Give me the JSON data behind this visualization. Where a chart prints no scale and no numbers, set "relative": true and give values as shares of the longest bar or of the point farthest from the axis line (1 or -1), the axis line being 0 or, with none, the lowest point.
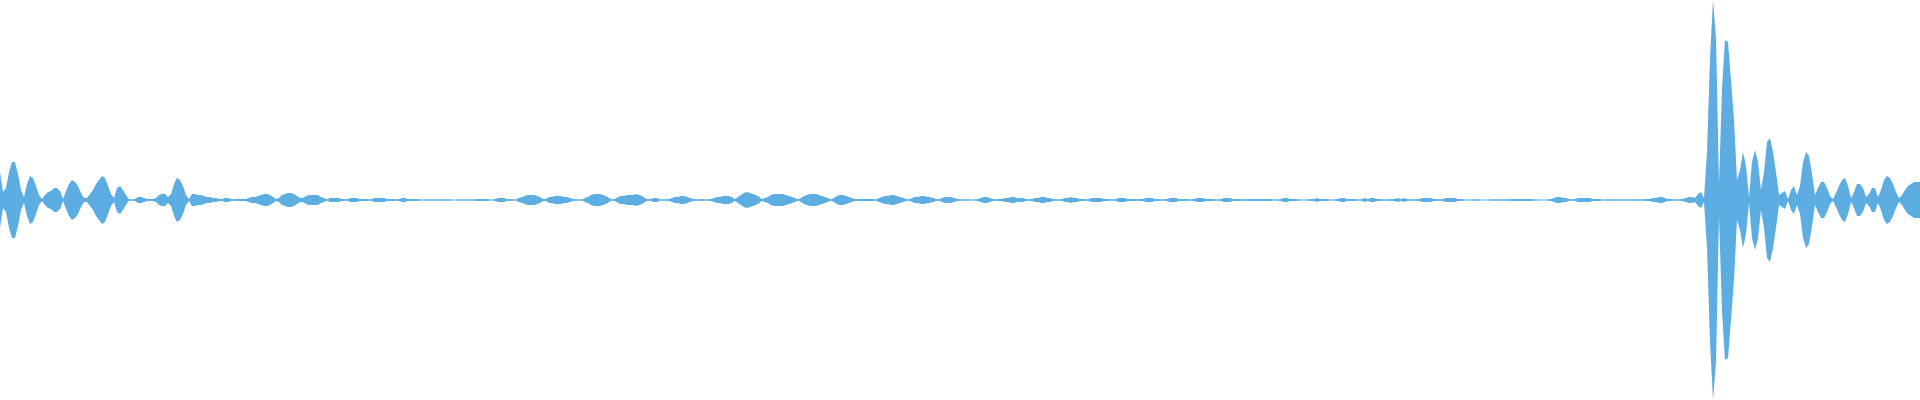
{
  "chart_data": {
    "type": "area",
    "relative": true,
    "categories": [
      null,
      null,
      null,
      null,
      null,
      null,
      null,
      null,
      null,
      null,
      null,
      null,
      null,
      null,
      null,
      null,
      null,
      null,
      null,
      null,
      null,
      null,
      null,
      null,
      null,
      null,
      null,
      null,
      null,
      null,
      null,
      null,
      null,
      null,
      null,
      null,
      null,
      null,
      null,
      null,
      null,
      null,
      null,
      null,
      null,
      null,
      null,
      null,
      null,
      null,
      null,
      null,
      null,
      null,
      null,
      null,
      null,
      null,
      null,
      null,
      null,
      null,
      null,
      null,
      null,
      null,
      null,
      null,
      null,
      null,
      null,
      null,
      null,
      null,
      null,
      null,
      null,
      null,
      null,
      null,
      null,
      null,
      null,
      null,
      null,
      null,
      null,
      null,
      null,
      null,
      null,
      null,
      null,
      null,
      null,
      null,
      null,
      null,
      null,
      null,
      null,
      null,
      null,
      null,
      null,
      null,
      null,
      null,
      null,
      null,
      null,
      null,
      null,
      null,
      null,
      null,
      null,
      null,
      null,
      null,
      null,
      null,
      null,
      null,
      null,
      null,
      null,
      null,
      null,
      null,
      null,
      null,
      null,
      null,
      null,
      null,
      null,
      null,
      null,
      null,
      null,
      null,
      null,
      null,
      null,
      null,
      null,
      null,
      null,
      null,
      null,
      null,
      null,
      null,
      null,
      null,
      null,
      null,
      null,
      null,
      null,
      null,
      null,
      null,
      null,
      null,
      null,
      null,
      null,
      null,
      null,
      null,
      null,
      null,
      null,
      null,
      null,
      null,
      null,
      null,
      null,
      null,
      null,
      null,
      null,
      null,
      null,
      null,
      null,
      null,
      null,
      null,
      null,
      null,
      null,
      null,
      null,
      null,
      null,
      null,
      null,
      null,
      null,
      null,
      null,
      null,
      null,
      null,
      null,
      null,
      null,
      null,
      null,
      null,
      null,
      null,
      null,
      null,
      null,
      null,
      null,
      null,
      null,
      null,
      null,
      null,
      null,
      null,
      null,
      null,
      null,
      null,
      null,
      null,
      null,
      null,
      null,
      null,
      null,
      null,
      null,
      null,
      null,
      null,
      null,
      null,
      null,
      null,
      null,
      null,
      null,
      null,
      null,
      null,
      null,
      null,
      null,
      null,
      null,
      null,
      null,
      null,
      null,
      null,
      null,
      null,
      null,
      null,
      null,
      null,
      null,
      null,
      null,
      null,
      null,
      null,
      null,
      null,
      null,
      null,
      null,
      null,
      null,
      null,
      null,
      null,
      null,
      null,
      null,
      null,
      null,
      null,
      null,
      null,
      null,
      null,
      null,
      null,
      null,
      null,
      null,
      null,
      null,
      null,
      null,
      null,
      null,
      null,
      null,
      null,
      null,
      null,
      null,
      null,
      null,
      null,
      null,
      null,
      null,
      null,
      null,
      null,
      null,
      null,
      null,
      null,
      null,
      null,
      null,
      null,
      null,
      null,
      null,
      null,
      null,
      null,
      null,
      null,
      null,
      null,
      null,
      null,
      null,
      null,
      null,
      null,
      null,
      null,
      null,
      null,
      null,
      null,
      null,
      null,
      null,
      null,
      null,
      null,
      null,
      null,
      null,
      null,
      null,
      null,
      null,
      null,
      null,
      null,
      null,
      null,
      null,
      null,
      null,
      null,
      null,
      null,
      null,
      null,
      null,
      null,
      null,
      null,
      null,
      null,
      null,
      null,
      null,
      null,
      null,
      null,
      null,
      null,
      null,
      null,
      null,
      null,
      null,
      null,
      null,
      null,
      null,
      null,
      null,
      null,
      null,
      null,
      null,
      null,
      null,
      null,
      null,
      null,
      null,
      null,
      null,
      null,
      null,
      null,
      null,
      null,
      null,
      null,
      null,
      null,
      null,
      null,
      null,
      null,
      null,
      null,
      null,
      null,
      null,
      null,
      null,
      null,
      null,
      null,
      null,
      null,
      null,
      null,
      null,
      null,
      null,
      null,
      null,
      null,
      null,
      null,
      null,
      null,
      null,
      null,
      null,
      null,
      null,
      null,
      null,
      null,
      null,
      null,
      null,
      null,
      null,
      null,
      null,
      null,
      null,
      null,
      null,
      null,
      null,
      null,
      null,
      null,
      null,
      null,
      null,
      null,
      null,
      null,
      null,
      null,
      null,
      null,
      null,
      null,
      null,
      null,
      null,
      null,
      null,
      null,
      null,
      null,
      null,
      null,
      null,
      null,
      null,
      null,
      null,
      null,
      null,
      null,
      null,
      null,
      null,
      null,
      null,
      null,
      null,
      null,
      null,
      null,
      null,
      null,
      null,
      null,
      null,
      null,
      null,
      null,
      null,
      null,
      null,
      null,
      null,
      null,
      null,
      null,
      null,
      null,
      null,
      null,
      null,
      null,
      null,
      null,
      null,
      null,
      null,
      null,
      null,
      null,
      null,
      null,
      null,
      null,
      null,
      null,
      null,
      null,
      null,
      null,
      null,
      null,
      null,
      null,
      null,
      null,
      null,
      null,
      null,
      null,
      null,
      null,
      null,
      null,
      null,
      null,
      null,
      null,
      null,
      null,
      null,
      null,
      null,
      null,
      null,
      null,
      null,
      null,
      null,
      null,
      null,
      null,
      null,
      null,
      null,
      null,
      null,
      null,
      null,
      null,
      null,
      null,
      null,
      null,
      null,
      null,
      null,
      null,
      null,
      null,
      null,
      null,
      null,
      null,
      null,
      null,
      null,
      null,
      null,
      null,
      null,
      null,
      null,
      null,
      null,
      null,
      null,
      null,
      null,
      null,
      null,
      null,
      null,
      null,
      null,
      null,
      null,
      null,
      null,
      null,
      null,
      null,
      null,
      null,
      null
    ],
    "ref_lines": [
      {
        "axis": "y",
        "value": 0,
        "color": "#5dade2"
      }
    ],
    "series": [
      {
        "color": "#5dade2",
        "values": [
          0.14,
          0.04,
          0.06,
          0.14,
          0.19,
          0.19,
          0.13,
          0.05,
          0.015,
          0.08,
          0.12,
          0.11,
          0.07,
          0.025,
          0.005,
          0.025,
          0.04,
          0.045,
          0.06,
          0.06,
          0.045,
          0.005,
          0.045,
          0.08,
          0.1,
          0.09,
          0.07,
          0.035,
          0.01,
          0.01,
          0.03,
          0.05,
          0.08,
          0.1,
          0.12,
          0.11,
          0.07,
          0.03,
          0.01,
          0.06,
          0.07,
          0.05,
          0.025,
          0.003,
          0.003,
          0.005,
          0.015,
          0.015,
          0.01,
          0.005,
          0.005,
          0.005,
          0.01,
          0.025,
          0.03,
          0.03,
          0.015,
          0.03,
          0.08,
          0.11,
          0.1,
          0.07,
          0.025,
          0.005,
          0.03,
          0.03,
          0.025,
          0.025,
          0.02,
          0.015,
          0.015,
          0.01,
          0.01,
          0.005,
          0.005,
          0.01,
          0.01,
          0.005,
          0.003,
          0.005,
          0.005,
          0.005,
          0.005,
          0.01,
          0.015,
          0.015,
          0.02,
          0.025,
          0.03,
          0.03,
          0.025,
          0.015,
          0.005,
          0.01,
          0.025,
          0.03,
          0.035,
          0.035,
          0.03,
          0.02,
          0.01,
          0.01,
          0.02,
          0.025,
          0.025,
          0.025,
          0.025,
          0.015,
          0.01,
          0.003,
          0.01,
          0.01,
          0.01,
          0.01,
          0.005,
          0.003,
          0.005,
          0.01,
          0.01,
          0.01,
          0.005,
          0.005,
          0.005,
          0.003,
          0.005,
          0.01,
          0.01,
          0.01,
          0.01,
          0.005,
          0.005,
          0.005,
          0.003,
          0.005,
          0.01,
          0.01,
          0.005,
          0.005,
          0.005,
          0.005,
          0.003,
          0,
          0.003,
          0.003,
          0.003,
          0.003,
          0.003,
          0.003,
          0.003,
          0.003,
          0.003,
          0,
          0,
          0.003,
          0.003,
          0.003,
          0.003,
          0,
          0.003,
          0.005,
          0.005,
          0.005,
          0.005,
          0.003,
          0,
          0.005,
          0.01,
          0.01,
          0.01,
          0.005,
          0.005,
          0.003,
          0.003,
          0.01,
          0.015,
          0.02,
          0.025,
          0.025,
          0.025,
          0.02,
          0.015,
          0.005,
          0.005,
          0.015,
          0.015,
          0.02,
          0.02,
          0.02,
          0.015,
          0.015,
          0.01,
          0.005,
          0.003,
          0.003,
          0.003,
          0.01,
          0.015,
          0.025,
          0.03,
          0.03,
          0.03,
          0.025,
          0.02,
          0.01,
          0.003,
          0.005,
          0.015,
          0.02,
          0.02,
          0.025,
          0.025,
          0.025,
          0.03,
          0.025,
          0.02,
          0.01,
          0.003,
          0.005,
          0.01,
          0.01,
          0.003,
          0.003,
          0.003,
          0.005,
          0.01,
          0.015,
          0.015,
          0.02,
          0.02,
          0.015,
          0.01,
          0.005,
          0.003,
          0.003,
          0.005,
          0.003,
          0.003,
          0.005,
          0.01,
          0.015,
          0.015,
          0.02,
          0.02,
          0.02,
          0.015,
          0.005,
          0.015,
          0.025,
          0.035,
          0.04,
          0.035,
          0.03,
          0.025,
          0.015,
          0.005,
          0.01,
          0.015,
          0.025,
          0.03,
          0.03,
          0.03,
          0.03,
          0.025,
          0.02,
          0.015,
          0.01,
          0.003,
          0.01,
          0.02,
          0.025,
          0.03,
          0.03,
          0.03,
          0.025,
          0.02,
          0.015,
          0.01,
          0.003,
          0.01,
          0.02,
          0.025,
          0.025,
          0.02,
          0.015,
          0.01,
          0.005,
          0.005,
          0.005,
          0.005,
          0.005,
          0.005,
          0.005,
          0.003,
          0.01,
          0.015,
          0.02,
          0.02,
          0.025,
          0.025,
          0.02,
          0.015,
          0.01,
          0.005,
          0.003,
          0.01,
          0.015,
          0.015,
          0.02,
          0.02,
          0.015,
          0.015,
          0.01,
          0.005,
          0.003,
          0.01,
          0.015,
          0.015,
          0.015,
          0.01,
          0.005,
          0.003,
          0.003,
          0.003,
          0.003,
          0,
          0.003,
          0.005,
          0.01,
          0.015,
          0.015,
          0.01,
          0.005,
          0.003,
          0.005,
          0.005,
          0.01,
          0.01,
          0.015,
          0.015,
          0.01,
          0.01,
          0.01,
          0.005,
          0.003,
          0.005,
          0.01,
          0.01,
          0.015,
          0.015,
          0.01,
          0.01,
          0.005,
          0.003,
          0.003,
          0.005,
          0.01,
          0.01,
          0.015,
          0.01,
          0.01,
          0.005,
          0.005,
          0.003,
          0.005,
          0.01,
          0.01,
          0.01,
          0.01,
          0.005,
          0.005,
          0.003,
          0.003,
          0.005,
          0.01,
          0.01,
          0.01,
          0.005,
          0.005,
          0.005,
          0.003,
          0.005,
          0.005,
          0.01,
          0.01,
          0.01,
          0.005,
          0.005,
          0.003,
          0.003,
          0.005,
          0.01,
          0.01,
          0.01,
          0.005,
          0.005,
          0.005,
          0.003,
          0.003,
          0.005,
          0.01,
          0.01,
          0.01,
          0.005,
          0.005,
          0.005,
          0.003,
          0.003,
          0.005,
          0.01,
          0.01,
          0.01,
          0.005,
          0.005,
          0.005,
          0.003,
          0.003,
          0.005,
          0.005,
          0.005,
          0.005,
          0.005,
          0.005,
          0.005,
          0.005,
          0.003,
          0,
          0.003,
          0.005,
          0.01,
          0.01,
          0.005,
          0.005,
          0.005,
          0.003,
          0,
          0,
          0.003,
          0.005,
          0.005,
          0.01,
          0.005,
          0.005,
          0.005,
          0.003,
          0,
          0.003,
          0.005,
          0.01,
          0.01,
          0.005,
          0.005,
          0.005,
          0.003,
          0.003,
          0.005,
          0.01,
          0.005,
          0.01,
          0.01,
          0.005,
          0.005,
          0.003,
          0.003,
          0.003,
          0.005,
          0.005,
          0.01,
          0.005,
          0.01,
          0.005,
          0.003,
          0.003,
          0.003,
          0.005,
          0.01,
          0.01,
          0.01,
          0.01,
          0.005,
          0.005,
          0.003,
          0.005,
          0.01,
          0.01,
          0.01,
          0.01,
          0.005,
          0.005,
          0.003,
          0,
          0,
          0.003,
          0.003,
          0.003,
          0,
          0,
          0,
          0.003,
          0.003,
          0.003,
          0.003,
          0.003,
          0.003,
          0.003,
          0.005,
          0.005,
          0.005,
          0.005,
          0.005,
          0.005,
          0.005,
          0.003,
          0.003,
          0,
          0,
          0,
          0.003,
          0.005,
          0.01,
          0.015,
          0.015,
          0.01,
          0.01,
          0.005,
          0.003,
          0.005,
          0.01,
          0.01,
          0.01,
          0.01,
          0.01,
          0.005,
          0.005,
          0.005,
          0.003,
          0,
          0.003,
          0.003,
          0.003,
          0.003,
          0.003,
          0.003,
          0.003,
          0.003,
          0.003,
          0.003,
          0.003,
          0.003,
          0.003,
          0.005,
          0.005,
          0.01,
          0.01,
          0.015,
          0.015,
          0.01,
          0.005,
          0.005,
          0.003,
          0.003,
          0.003,
          0.005,
          0.01,
          0.015,
          0.015,
          0.01,
          0.03,
          0.04,
          0.01,
          0.24,
          0.71,
          1,
          0.81,
          0.08,
          0.56,
          0.8,
          0.79,
          0.6,
          0.4,
          0.1,
          0.15,
          0.24,
          0.17,
          0.015,
          0.19,
          0.25,
          0.19,
          0.05,
          0.14,
          0.29,
          0.31,
          0.24,
          0.14,
          0.025,
          0.035,
          0.045,
          0.005,
          0.05,
          0.07,
          0.025,
          0.07,
          0.19,
          0.24,
          0.22,
          0.13,
          0.025,
          0.06,
          0.09,
          0.09,
          0.06,
          0.02,
          0.005,
          0.035,
          0.07,
          0.1,
          0.11,
          0.07,
          0.01,
          0.04,
          0.08,
          0.08,
          0.06,
          0.015,
          0.03,
          0.06,
          0.06,
          0.015,
          0.05,
          0.1,
          0.12,
          0.11,
          0.08,
          0.04,
          0.01,
          0.025,
          0.05,
          0.07,
          0.08,
          0.09,
          0.09,
          0.09
        ]
      },
      {
        "color": "#5caee2",
        "values": [
          -0.14,
          -0.04,
          -0.06,
          -0.14,
          -0.19,
          -0.19,
          -0.13,
          -0.05,
          -0.015,
          -0.08,
          -0.12,
          -0.11,
          -0.07,
          -0.025,
          -0.005,
          -0.025,
          -0.04,
          -0.045,
          -0.06,
          -0.06,
          -0.045,
          -0.005,
          -0.045,
          -0.08,
          -0.1,
          -0.09,
          -0.07,
          -0.035,
          -0.01,
          -0.01,
          -0.03,
          -0.05,
          -0.08,
          -0.1,
          -0.12,
          -0.11,
          -0.07,
          -0.03,
          -0.01,
          -0.06,
          -0.07,
          -0.05,
          -0.025,
          -0.003,
          -0.003,
          -0.005,
          -0.015,
          -0.015,
          -0.01,
          -0.005,
          -0.005,
          -0.005,
          -0.01,
          -0.025,
          -0.03,
          -0.03,
          -0.015,
          -0.03,
          -0.08,
          -0.11,
          -0.1,
          -0.07,
          -0.025,
          -0.005,
          -0.03,
          -0.03,
          -0.025,
          -0.025,
          -0.02,
          -0.015,
          -0.015,
          -0.01,
          -0.01,
          -0.005,
          -0.005,
          -0.01,
          -0.01,
          -0.005,
          -0.003,
          -0.005,
          -0.005,
          -0.005,
          -0.005,
          -0.01,
          -0.015,
          -0.015,
          -0.02,
          -0.025,
          -0.03,
          -0.03,
          -0.025,
          -0.015,
          -0.005,
          -0.01,
          -0.025,
          -0.03,
          -0.035,
          -0.035,
          -0.03,
          -0.02,
          -0.01,
          -0.01,
          -0.02,
          -0.025,
          -0.025,
          -0.025,
          -0.025,
          -0.015,
          -0.01,
          -0.003,
          -0.01,
          -0.01,
          -0.01,
          -0.01,
          -0.005,
          -0.003,
          -0.005,
          -0.01,
          -0.01,
          -0.01,
          -0.005,
          -0.005,
          -0.005,
          -0.003,
          -0.005,
          -0.01,
          -0.01,
          -0.01,
          -0.01,
          -0.005,
          -0.005,
          -0.005,
          -0.003,
          -0.005,
          -0.01,
          -0.01,
          -0.005,
          -0.005,
          -0.005,
          -0.005,
          -0.003,
          0,
          -0.003,
          -0.003,
          -0.003,
          -0.003,
          -0.003,
          -0.003,
          -0.003,
          -0.003,
          -0.003,
          0,
          0,
          -0.003,
          -0.003,
          -0.003,
          -0.003,
          0,
          -0.003,
          -0.005,
          -0.005,
          -0.005,
          -0.005,
          -0.003,
          0,
          -0.005,
          -0.01,
          -0.01,
          -0.01,
          -0.005,
          -0.005,
          -0.003,
          -0.003,
          -0.01,
          -0.015,
          -0.02,
          -0.025,
          -0.025,
          -0.025,
          -0.02,
          -0.015,
          -0.005,
          -0.005,
          -0.015,
          -0.015,
          -0.02,
          -0.02,
          -0.02,
          -0.015,
          -0.015,
          -0.01,
          -0.005,
          -0.003,
          -0.003,
          -0.003,
          -0.01,
          -0.015,
          -0.025,
          -0.03,
          -0.03,
          -0.03,
          -0.025,
          -0.02,
          -0.01,
          -0.003,
          -0.005,
          -0.015,
          -0.02,
          -0.02,
          -0.025,
          -0.025,
          -0.025,
          -0.03,
          -0.025,
          -0.02,
          -0.01,
          -0.003,
          -0.005,
          -0.01,
          -0.01,
          -0.003,
          -0.003,
          -0.003,
          -0.005,
          -0.01,
          -0.015,
          -0.015,
          -0.02,
          -0.02,
          -0.015,
          -0.01,
          -0.005,
          -0.003,
          -0.003,
          -0.005,
          -0.003,
          -0.003,
          -0.005,
          -0.01,
          -0.015,
          -0.015,
          -0.02,
          -0.02,
          -0.02,
          -0.015,
          -0.005,
          -0.015,
          -0.025,
          -0.035,
          -0.04,
          -0.035,
          -0.03,
          -0.025,
          -0.015,
          -0.005,
          -0.01,
          -0.015,
          -0.025,
          -0.03,
          -0.03,
          -0.03,
          -0.03,
          -0.025,
          -0.02,
          -0.015,
          -0.01,
          -0.003,
          -0.01,
          -0.02,
          -0.025,
          -0.03,
          -0.03,
          -0.03,
          -0.025,
          -0.02,
          -0.015,
          -0.01,
          -0.003,
          -0.01,
          -0.02,
          -0.025,
          -0.025,
          -0.02,
          -0.015,
          -0.01,
          -0.005,
          -0.005,
          -0.005,
          -0.005,
          -0.005,
          -0.005,
          -0.005,
          -0.003,
          -0.01,
          -0.015,
          -0.02,
          -0.02,
          -0.025,
          -0.025,
          -0.02,
          -0.015,
          -0.01,
          -0.005,
          -0.003,
          -0.01,
          -0.015,
          -0.015,
          -0.02,
          -0.02,
          -0.015,
          -0.015,
          -0.01,
          -0.005,
          -0.003,
          -0.01,
          -0.015,
          -0.015,
          -0.015,
          -0.01,
          -0.005,
          -0.003,
          -0.003,
          -0.003,
          -0.003,
          0,
          -0.003,
          -0.005,
          -0.01,
          -0.015,
          -0.015,
          -0.01,
          -0.005,
          -0.003,
          -0.005,
          -0.005,
          -0.01,
          -0.01,
          -0.015,
          -0.015,
          -0.01,
          -0.01,
          -0.01,
          -0.005,
          -0.003,
          -0.005,
          -0.01,
          -0.01,
          -0.015,
          -0.015,
          -0.01,
          -0.01,
          -0.005,
          -0.003,
          -0.003,
          -0.005,
          -0.01,
          -0.01,
          -0.015,
          -0.01,
          -0.01,
          -0.005,
          -0.005,
          -0.003,
          -0.005,
          -0.01,
          -0.01,
          -0.01,
          -0.01,
          -0.005,
          -0.005,
          -0.003,
          -0.003,
          -0.005,
          -0.01,
          -0.01,
          -0.01,
          -0.005,
          -0.005,
          -0.005,
          -0.003,
          -0.005,
          -0.005,
          -0.01,
          -0.01,
          -0.01,
          -0.005,
          -0.005,
          -0.003,
          -0.003,
          -0.005,
          -0.01,
          -0.01,
          -0.01,
          -0.005,
          -0.005,
          -0.005,
          -0.003,
          -0.003,
          -0.005,
          -0.01,
          -0.01,
          -0.01,
          -0.005,
          -0.005,
          -0.005,
          -0.003,
          -0.003,
          -0.005,
          -0.01,
          -0.01,
          -0.01,
          -0.005,
          -0.005,
          -0.005,
          -0.003,
          -0.003,
          -0.005,
          -0.005,
          -0.005,
          -0.005,
          -0.005,
          -0.005,
          -0.005,
          -0.005,
          -0.003,
          0,
          -0.003,
          -0.005,
          -0.01,
          -0.01,
          -0.005,
          -0.005,
          -0.005,
          -0.003,
          0,
          0,
          -0.003,
          -0.005,
          -0.005,
          -0.01,
          -0.005,
          -0.005,
          -0.005,
          -0.003,
          0,
          -0.003,
          -0.005,
          -0.01,
          -0.01,
          -0.005,
          -0.005,
          -0.005,
          -0.003,
          -0.003,
          -0.005,
          -0.01,
          -0.005,
          -0.01,
          -0.01,
          -0.005,
          -0.005,
          -0.003,
          -0.003,
          -0.003,
          -0.005,
          -0.005,
          -0.01,
          -0.005,
          -0.01,
          -0.005,
          -0.003,
          -0.003,
          -0.003,
          -0.005,
          -0.01,
          -0.01,
          -0.01,
          -0.01,
          -0.005,
          -0.005,
          -0.003,
          -0.005,
          -0.01,
          -0.01,
          -0.01,
          -0.01,
          -0.005,
          -0.005,
          -0.003,
          0,
          0,
          -0.003,
          -0.003,
          -0.003,
          0,
          0,
          0,
          -0.003,
          -0.003,
          -0.003,
          -0.003,
          -0.003,
          -0.003,
          -0.003,
          -0.005,
          -0.005,
          -0.005,
          -0.005,
          -0.005,
          -0.005,
          -0.005,
          -0.003,
          -0.003,
          0,
          0,
          0,
          -0.003,
          -0.005,
          -0.01,
          -0.015,
          -0.015,
          -0.01,
          -0.01,
          -0.005,
          -0.003,
          -0.005,
          -0.01,
          -0.01,
          -0.01,
          -0.01,
          -0.01,
          -0.005,
          -0.005,
          -0.005,
          -0.003,
          0,
          -0.003,
          -0.003,
          -0.003,
          -0.003,
          -0.003,
          -0.003,
          -0.003,
          -0.003,
          -0.003,
          -0.003,
          -0.003,
          -0.003,
          -0.003,
          -0.005,
          -0.005,
          -0.01,
          -0.01,
          -0.015,
          -0.015,
          -0.01,
          -0.005,
          -0.005,
          -0.003,
          -0.003,
          -0.003,
          -0.005,
          -0.01,
          -0.015,
          -0.015,
          -0.01,
          -0.03,
          -0.04,
          -0.01,
          -0.24,
          -0.71,
          -1,
          -0.81,
          -0.08,
          -0.56,
          -0.8,
          -0.79,
          -0.6,
          -0.4,
          -0.1,
          -0.15,
          -0.24,
          -0.17,
          -0.015,
          -0.19,
          -0.25,
          -0.19,
          -0.05,
          -0.14,
          -0.29,
          -0.31,
          -0.24,
          -0.14,
          -0.025,
          -0.035,
          -0.045,
          -0.005,
          -0.05,
          -0.07,
          -0.025,
          -0.07,
          -0.19,
          -0.24,
          -0.22,
          -0.13,
          -0.025,
          -0.06,
          -0.09,
          -0.09,
          -0.06,
          -0.02,
          -0.005,
          -0.035,
          -0.07,
          -0.1,
          -0.11,
          -0.07,
          -0.01,
          -0.04,
          -0.08,
          -0.08,
          -0.06,
          -0.015,
          -0.03,
          -0.06,
          -0.06,
          -0.015,
          -0.05,
          -0.1,
          -0.12,
          -0.11,
          -0.08,
          -0.04,
          -0.01,
          -0.025,
          -0.05,
          -0.07,
          -0.08,
          -0.09,
          -0.09,
          -0.09
        ]
      }
    ]
  }
}
